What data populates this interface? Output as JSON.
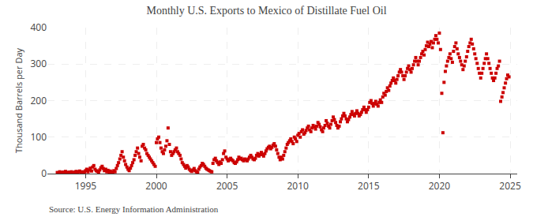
{
  "chart_data": {
    "type": "scatter",
    "title": "Monthly U.S. Exports to Mexico of Distillate Fuel Oil",
    "y_label": "Thousand Barrels per Day",
    "annotations": [
      "Source: U.S. Energy Information Administration"
    ],
    "color": "#cc0000",
    "marker": "square",
    "grid": true,
    "xlim": [
      1992.3,
      2025.5
    ],
    "xticks": [
      1995,
      2000,
      2005,
      2010,
      2015,
      2020,
      2025
    ],
    "ylim": [
      0,
      400
    ],
    "yticks": [
      0,
      100,
      200,
      300,
      400
    ],
    "x": [
      1993.0,
      1993.08,
      1993.17,
      1993.25,
      1993.33,
      1993.42,
      1993.5,
      1993.58,
      1993.67,
      1993.75,
      1993.83,
      1993.92,
      1994.0,
      1994.08,
      1994.17,
      1994.25,
      1994.33,
      1994.42,
      1994.5,
      1994.58,
      1994.67,
      1994.75,
      1994.83,
      1994.92,
      1995.0,
      1995.08,
      1995.17,
      1995.25,
      1995.33,
      1995.42,
      1995.5,
      1995.58,
      1995.67,
      1995.75,
      1995.83,
      1995.92,
      1996.0,
      1996.08,
      1996.17,
      1996.25,
      1996.33,
      1996.42,
      1996.5,
      1996.58,
      1996.67,
      1996.75,
      1996.83,
      1996.92,
      1997.0,
      1997.08,
      1997.17,
      1997.25,
      1997.33,
      1997.42,
      1997.5,
      1997.58,
      1997.67,
      1997.75,
      1997.83,
      1997.92,
      1998.0,
      1998.08,
      1998.17,
      1998.25,
      1998.33,
      1998.42,
      1998.5,
      1998.58,
      1998.67,
      1998.75,
      1998.83,
      1998.92,
      1999.0,
      1999.08,
      1999.17,
      1999.25,
      1999.33,
      1999.42,
      1999.5,
      1999.58,
      1999.67,
      1999.75,
      1999.83,
      1999.92,
      2000.0,
      2000.08,
      2000.17,
      2000.25,
      2000.33,
      2000.42,
      2000.5,
      2000.58,
      2000.67,
      2000.75,
      2000.83,
      2000.92,
      2001.0,
      2001.08,
      2001.17,
      2001.25,
      2001.33,
      2001.42,
      2001.5,
      2001.58,
      2001.67,
      2001.75,
      2001.83,
      2001.92,
      2002.0,
      2002.08,
      2002.17,
      2002.25,
      2002.33,
      2002.42,
      2002.5,
      2002.58,
      2002.67,
      2002.75,
      2002.83,
      2002.92,
      2003.0,
      2003.08,
      2003.17,
      2003.25,
      2003.33,
      2003.42,
      2003.5,
      2003.58,
      2003.67,
      2003.75,
      2003.83,
      2003.92,
      2004.0,
      2004.08,
      2004.17,
      2004.25,
      2004.33,
      2004.42,
      2004.5,
      2004.58,
      2004.67,
      2004.75,
      2004.83,
      2004.92,
      2005.0,
      2005.08,
      2005.17,
      2005.25,
      2005.33,
      2005.42,
      2005.5,
      2005.58,
      2005.67,
      2005.75,
      2005.83,
      2005.92,
      2006.0,
      2006.08,
      2006.17,
      2006.25,
      2006.33,
      2006.42,
      2006.5,
      2006.58,
      2006.67,
      2006.75,
      2006.83,
      2006.92,
      2007.0,
      2007.08,
      2007.17,
      2007.25,
      2007.33,
      2007.42,
      2007.5,
      2007.58,
      2007.67,
      2007.75,
      2007.83,
      2007.92,
      2008.0,
      2008.08,
      2008.17,
      2008.25,
      2008.33,
      2008.42,
      2008.5,
      2008.58,
      2008.67,
      2008.75,
      2008.83,
      2008.92,
      2009.0,
      2009.08,
      2009.17,
      2009.25,
      2009.33,
      2009.42,
      2009.5,
      2009.58,
      2009.67,
      2009.75,
      2009.83,
      2009.92,
      2010.0,
      2010.08,
      2010.17,
      2010.25,
      2010.33,
      2010.42,
      2010.5,
      2010.58,
      2010.67,
      2010.75,
      2010.83,
      2010.92,
      2011.0,
      2011.08,
      2011.17,
      2011.25,
      2011.33,
      2011.42,
      2011.5,
      2011.58,
      2011.67,
      2011.75,
      2011.83,
      2011.92,
      2012.0,
      2012.08,
      2012.17,
      2012.25,
      2012.33,
      2012.42,
      2012.5,
      2012.58,
      2012.67,
      2012.75,
      2012.83,
      2012.92,
      2013.0,
      2013.08,
      2013.17,
      2013.25,
      2013.33,
      2013.42,
      2013.5,
      2013.58,
      2013.67,
      2013.75,
      2013.83,
      2013.92,
      2014.0,
      2014.08,
      2014.17,
      2014.25,
      2014.33,
      2014.42,
      2014.5,
      2014.58,
      2014.67,
      2014.75,
      2014.83,
      2014.92,
      2015.0,
      2015.08,
      2015.17,
      2015.25,
      2015.33,
      2015.42,
      2015.5,
      2015.58,
      2015.67,
      2015.75,
      2015.83,
      2015.92,
      2016.0,
      2016.08,
      2016.17,
      2016.25,
      2016.33,
      2016.42,
      2016.5,
      2016.58,
      2016.67,
      2016.75,
      2016.83,
      2016.92,
      2017.0,
      2017.08,
      2017.17,
      2017.25,
      2017.33,
      2017.42,
      2017.5,
      2017.58,
      2017.67,
      2017.75,
      2017.83,
      2017.92,
      2018.0,
      2018.08,
      2018.17,
      2018.25,
      2018.33,
      2018.42,
      2018.5,
      2018.58,
      2018.67,
      2018.75,
      2018.83,
      2018.92,
      2019.0,
      2019.08,
      2019.17,
      2019.25,
      2019.33,
      2019.42,
      2019.5,
      2019.58,
      2019.67,
      2019.75,
      2019.83,
      2019.92,
      2020.0,
      2020.08,
      2020.17,
      2020.25,
      2020.33,
      2020.42,
      2020.5,
      2020.58,
      2020.67,
      2020.75,
      2020.83,
      2020.92,
      2021.0,
      2021.08,
      2021.17,
      2021.25,
      2021.33,
      2021.42,
      2021.5,
      2021.58,
      2021.67,
      2021.75,
      2021.83,
      2021.92,
      2022.0,
      2022.08,
      2022.17,
      2022.25,
      2022.33,
      2022.42,
      2022.5,
      2022.58,
      2022.67,
      2022.75,
      2022.83,
      2022.92,
      2023.0,
      2023.08,
      2023.17,
      2023.25,
      2023.33,
      2023.42,
      2023.5,
      2023.58,
      2023.67,
      2023.75,
      2023.83,
      2023.92,
      2024.0,
      2024.08,
      2024.17,
      2024.25,
      2024.33,
      2024.42,
      2024.5,
      2024.58,
      2024.67,
      2024.75,
      2024.83,
      2024.92
    ],
    "values": [
      3,
      2,
      5,
      1,
      3,
      4,
      2,
      6,
      3,
      1,
      4,
      2,
      5,
      3,
      2,
      4,
      6,
      3,
      5,
      7,
      4,
      3,
      5,
      2,
      8,
      12,
      5,
      10,
      15,
      7,
      18,
      22,
      12,
      8,
      6,
      4,
      10,
      16,
      20,
      14,
      8,
      12,
      5,
      9,
      3,
      7,
      4,
      2,
      8,
      5,
      14,
      22,
      30,
      40,
      50,
      60,
      45,
      35,
      25,
      18,
      12,
      8,
      15,
      22,
      30,
      38,
      50,
      60,
      70,
      55,
      45,
      35,
      75,
      80,
      70,
      65,
      55,
      50,
      45,
      40,
      35,
      30,
      25,
      20,
      85,
      95,
      100,
      85,
      70,
      60,
      55,
      65,
      75,
      90,
      125,
      80,
      60,
      50,
      55,
      60,
      65,
      70,
      60,
      55,
      50,
      40,
      30,
      25,
      20,
      15,
      22,
      18,
      12,
      8,
      6,
      10,
      14,
      8,
      5,
      3,
      12,
      18,
      22,
      28,
      25,
      20,
      15,
      12,
      10,
      8,
      6,
      5,
      28,
      38,
      42,
      35,
      30,
      25,
      32,
      28,
      38,
      55,
      62,
      45,
      40,
      35,
      38,
      42,
      38,
      35,
      30,
      28,
      32,
      38,
      45,
      40,
      42,
      38,
      35,
      40,
      38,
      35,
      40,
      45,
      50,
      45,
      40,
      38,
      42,
      50,
      55,
      48,
      52,
      58,
      52,
      48,
      55,
      62,
      68,
      72,
      75,
      68,
      72,
      78,
      82,
      75,
      65,
      55,
      45,
      38,
      45,
      40,
      50,
      60,
      70,
      80,
      85,
      90,
      95,
      88,
      82,
      100,
      95,
      88,
      105,
      110,
      100,
      115,
      120,
      108,
      112,
      118,
      125,
      130,
      120,
      115,
      125,
      132,
      128,
      122,
      130,
      140,
      135,
      128,
      120,
      115,
      125,
      132,
      145,
      138,
      130,
      125,
      135,
      145,
      155,
      148,
      140,
      132,
      125,
      130,
      142,
      150,
      158,
      165,
      158,
      150,
      142,
      148,
      155,
      162,
      170,
      162,
      158,
      165,
      172,
      165,
      158,
      162,
      168,
      175,
      182,
      175,
      168,
      175,
      182,
      195,
      200,
      192,
      185,
      192,
      198,
      190,
      185,
      195,
      202,
      195,
      210,
      220,
      215,
      225,
      235,
      228,
      240,
      248,
      255,
      262,
      255,
      248,
      258,
      268,
      278,
      285,
      278,
      268,
      258,
      268,
      278,
      288,
      295,
      285,
      278,
      288,
      298,
      308,
      318,
      308,
      298,
      308,
      318,
      328,
      335,
      325,
      340,
      350,
      360,
      348,
      355,
      362,
      345,
      358,
      368,
      378,
      368,
      358,
      385,
      340,
      220,
      112,
      250,
      280,
      295,
      308,
      318,
      328,
      315,
      305,
      335,
      348,
      358,
      342,
      328,
      318,
      308,
      298,
      285,
      295,
      308,
      320,
      335,
      348,
      358,
      368,
      355,
      342,
      328,
      315,
      302,
      288,
      275,
      262,
      275,
      288,
      302,
      315,
      328,
      315,
      302,
      288,
      275,
      262,
      255,
      262,
      275,
      288,
      295,
      308,
      198,
      210,
      222,
      235,
      248,
      260,
      270,
      265
    ]
  }
}
